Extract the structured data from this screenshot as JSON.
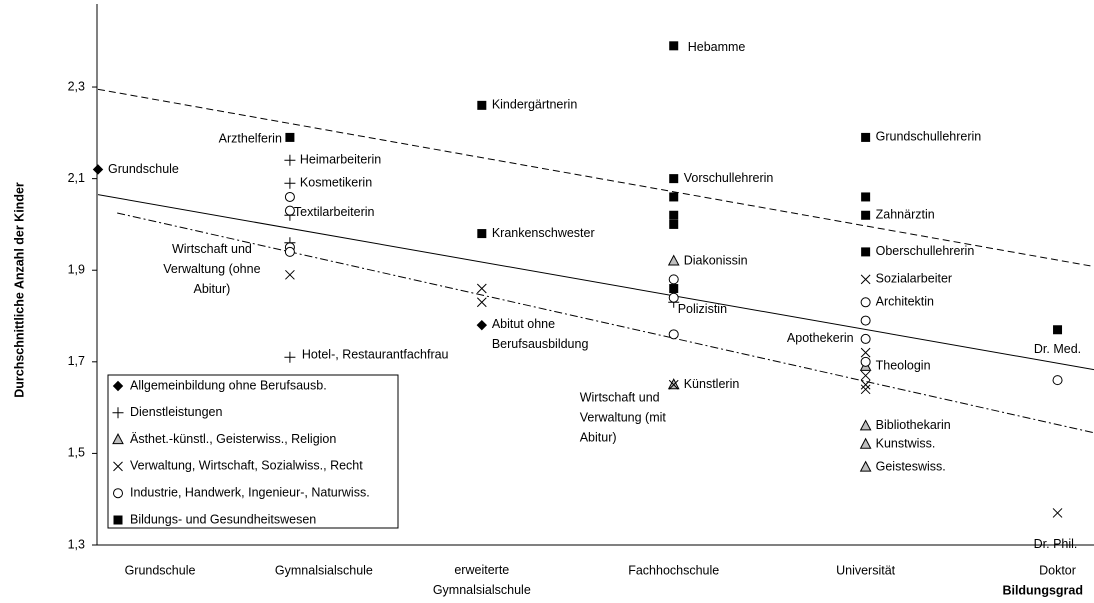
{
  "chart_data": {
    "type": "scatter",
    "y_label": "Durchschnittliche Anzahl der Kinder",
    "x_label": "Bildungsgrad",
    "categories": [
      "Grundschule",
      "Gymnalsialschule",
      "erweiterte\nGymnalsialschule",
      "Fachhochschule",
      "Universität",
      "Doktor"
    ],
    "xlim": [
      0,
      5.19
    ],
    "ylim": [
      1.3,
      2.48
    ],
    "yticks": [
      {
        "value": 1.3,
        "label": "1,3"
      },
      {
        "value": 1.5,
        "label": "1,5"
      },
      {
        "value": 1.7,
        "label": "1,7"
      },
      {
        "value": 1.9,
        "label": "1,9"
      },
      {
        "value": 2.1,
        "label": "2,1"
      },
      {
        "value": 2.3,
        "label": "2,3"
      }
    ],
    "series": [
      {
        "name": "Allgemeinbildung ohne Berufsausb.",
        "marker": "diamond",
        "color": "#000000",
        "x": [
          0,
          2
        ],
        "values": [
          2.12,
          1.78
        ],
        "labels": [
          "Grundschule",
          "Abitut ohne\nBerufsausbildung"
        ]
      },
      {
        "name": "Dienstleistungen",
        "marker": "plus",
        "color": "#000000",
        "x": [
          1,
          1,
          1,
          1,
          1,
          3
        ],
        "values": [
          2.14,
          2.09,
          2.02,
          1.96,
          1.71,
          1.83
        ],
        "labels": [
          "Heimarbeiterin",
          "Kosmetikerin",
          null,
          null,
          "Hotel-, Restaurantfachfrau",
          null
        ]
      },
      {
        "name": "Ästhet.-künstl., Geisterwiss., Religion",
        "marker": "triangle",
        "color": "#bfbfbf",
        "x": [
          3,
          3,
          4,
          4,
          4,
          4
        ],
        "values": [
          1.92,
          1.65,
          1.69,
          1.56,
          1.52,
          1.47
        ],
        "labels": [
          "Diakonissin",
          "Künstlerin",
          "Theologin",
          "Bibliothekarin",
          "Kunstwiss.",
          "Geisteswiss."
        ]
      },
      {
        "name": "Verwaltung, Wirtschaft, Sozialwiss., Recht",
        "marker": "cross",
        "color": "#000000",
        "x": [
          1,
          2,
          2,
          3,
          4,
          4,
          4,
          4,
          4,
          5
        ],
        "values": [
          1.89,
          1.86,
          1.83,
          1.65,
          1.88,
          1.72,
          1.67,
          1.65,
          1.64,
          1.37
        ],
        "labels": [
          "Wirtschaft und\nVerwaltung (ohne\nAbitur)",
          null,
          null,
          "Wirtschaft und\nVerwaltung (mit\nAbitur)",
          "Sozialarbeiter",
          null,
          null,
          null,
          null,
          "Dr. Phil."
        ]
      },
      {
        "name": "Industrie, Handwerk, Ingenieur-, Naturwiss.",
        "marker": "circle",
        "color": "#ffffff",
        "x": [
          1,
          1,
          1,
          1,
          3,
          3,
          3,
          4,
          4,
          4,
          4,
          5
        ],
        "values": [
          2.06,
          2.03,
          1.95,
          1.94,
          1.88,
          1.84,
          1.76,
          1.83,
          1.79,
          1.75,
          1.7,
          1.66
        ],
        "labels": [
          "",
          "Textilarbeiterin",
          null,
          null,
          null,
          "Polizistin",
          null,
          "Architektin",
          null,
          "Apothekerin",
          null,
          null
        ]
      },
      {
        "name": "Bildungs- und Gesundheitswesen",
        "marker": "square",
        "color": "#000000",
        "x": [
          1,
          2,
          2,
          3,
          3,
          3,
          3,
          3,
          3,
          4,
          4,
          4,
          4,
          5
        ],
        "values": [
          2.19,
          2.26,
          1.98,
          2.39,
          2.1,
          2.06,
          2.02,
          2.0,
          1.86,
          2.19,
          2.06,
          2.02,
          1.94,
          1.77
        ],
        "labels": [
          "Arzthelferin",
          "Kindergärtnerin",
          "Krankenschwester",
          "Hebamme",
          "Vorschullehrerin",
          null,
          null,
          null,
          null,
          "Grundschullehrerin",
          null,
          "Zahnärztin",
          "Oberschullehrerin",
          "Dr. Med."
        ]
      }
    ],
    "trend_lines": [
      {
        "style": "solid",
        "x": [
          0,
          5.19
        ],
        "values": [
          2.065,
          1.683
        ]
      },
      {
        "style": "dashed",
        "x": [
          0,
          5.19
        ],
        "values": [
          2.295,
          1.908
        ]
      },
      {
        "style": "dashdot",
        "x": [
          0.1,
          5.19
        ],
        "values": [
          2.025,
          1.545
        ]
      }
    ],
    "legend": "lower left"
  }
}
